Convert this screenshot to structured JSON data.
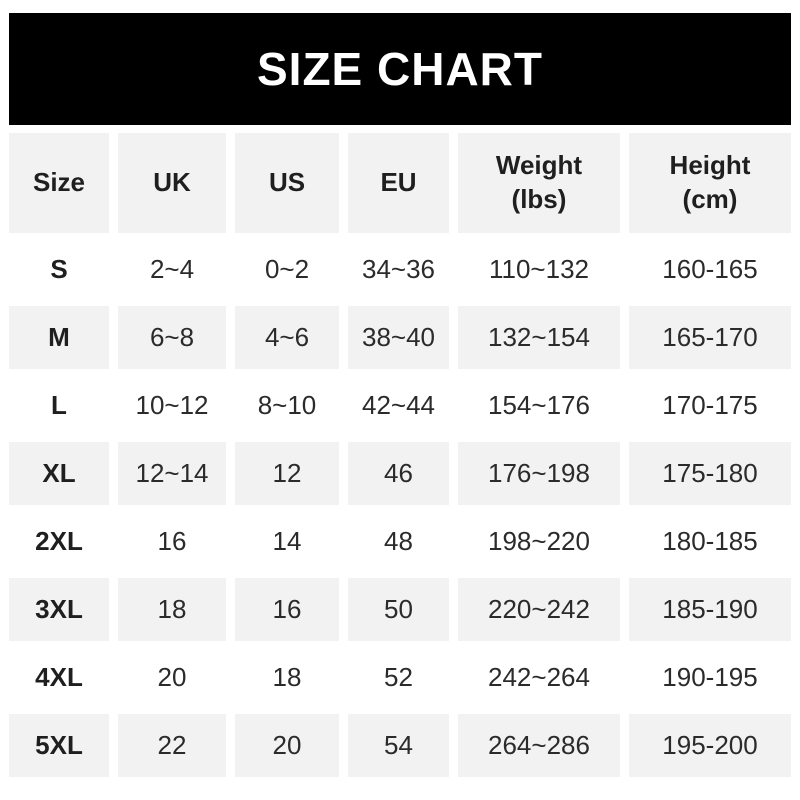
{
  "banner": {
    "title": "SIZE CHART"
  },
  "colors": {
    "banner_bg": "#000000",
    "banner_text": "#ffffff",
    "header_bg": "#f2f2f2",
    "row_alt_bg": "#f2f2f2",
    "text": "#1f1f1f"
  },
  "table": {
    "columns": [
      {
        "label": "Size",
        "sub": ""
      },
      {
        "label": "UK",
        "sub": ""
      },
      {
        "label": "US",
        "sub": ""
      },
      {
        "label": "EU",
        "sub": ""
      },
      {
        "label": "Weight",
        "sub": "(lbs)"
      },
      {
        "label": "Height",
        "sub": "(cm)"
      }
    ],
    "rows": [
      {
        "size": "S",
        "uk": "2~4",
        "us": "0~2",
        "eu": "34~36",
        "weight": "110~132",
        "height": "160-165"
      },
      {
        "size": "M",
        "uk": "6~8",
        "us": "4~6",
        "eu": "38~40",
        "weight": "132~154",
        "height": "165-170"
      },
      {
        "size": "L",
        "uk": "10~12",
        "us": "8~10",
        "eu": "42~44",
        "weight": "154~176",
        "height": "170-175"
      },
      {
        "size": "XL",
        "uk": "12~14",
        "us": "12",
        "eu": "46",
        "weight": "176~198",
        "height": "175-180"
      },
      {
        "size": "2XL",
        "uk": "16",
        "us": "14",
        "eu": "48",
        "weight": "198~220",
        "height": "180-185"
      },
      {
        "size": "3XL",
        "uk": "18",
        "us": "16",
        "eu": "50",
        "weight": "220~242",
        "height": "185-190"
      },
      {
        "size": "4XL",
        "uk": "20",
        "us": "18",
        "eu": "52",
        "weight": "242~264",
        "height": "190-195"
      },
      {
        "size": "5XL",
        "uk": "22",
        "us": "20",
        "eu": "54",
        "weight": "264~286",
        "height": "195-200"
      }
    ]
  },
  "chart_data": {
    "type": "table",
    "title": "SIZE CHART",
    "columns": [
      "Size",
      "UK",
      "US",
      "EU",
      "Weight (lbs)",
      "Height (cm)"
    ],
    "rows": [
      [
        "S",
        "2~4",
        "0~2",
        "34~36",
        "110~132",
        "160-165"
      ],
      [
        "M",
        "6~8",
        "4~6",
        "38~40",
        "132~154",
        "165-170"
      ],
      [
        "L",
        "10~12",
        "8~10",
        "42~44",
        "154~176",
        "170-175"
      ],
      [
        "XL",
        "12~14",
        "12",
        "46",
        "176~198",
        "175-180"
      ],
      [
        "2XL",
        "16",
        "14",
        "48",
        "198~220",
        "180-185"
      ],
      [
        "3XL",
        "18",
        "16",
        "50",
        "220~242",
        "185-190"
      ],
      [
        "4XL",
        "20",
        "18",
        "52",
        "242~264",
        "190-195"
      ],
      [
        "5XL",
        "22",
        "20",
        "54",
        "264~286",
        "195-200"
      ]
    ]
  }
}
